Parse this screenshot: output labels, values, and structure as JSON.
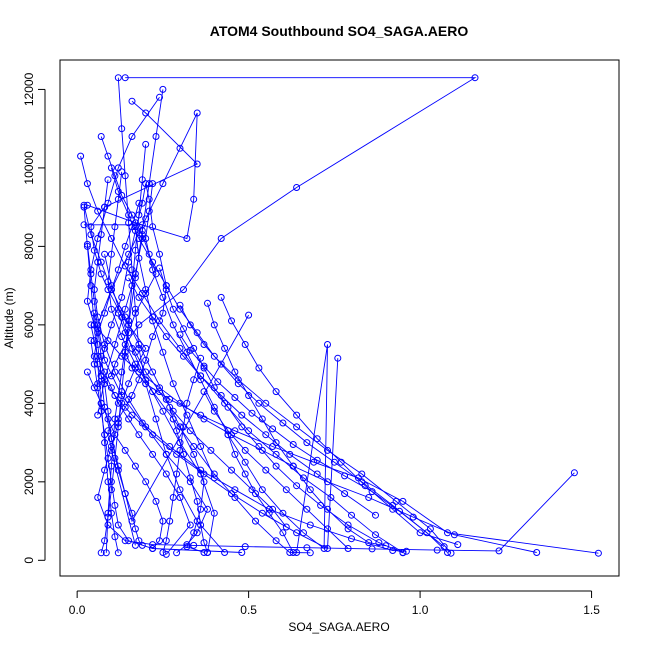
{
  "chart_data": {
    "type": "line",
    "title": "ATOM4 Southbound SO4_SAGA.AERO",
    "xlabel": "SO4_SAGA.AERO",
    "ylabel": "Altitude (m)",
    "xlim": [
      -0.05,
      1.58
    ],
    "ylim": [
      -400,
      12750
    ],
    "x_ticks": [
      0.0,
      0.5,
      1.0,
      1.5
    ],
    "x_tick_labels": [
      "0.0",
      "0.5",
      "1.0",
      "1.5"
    ],
    "y_ticks": [
      0,
      2000,
      4000,
      6000,
      8000,
      10000,
      12000
    ],
    "y_tick_labels": [
      "0",
      "2000",
      "4000",
      "6000",
      "8000",
      "10000",
      "12000"
    ],
    "series_color": "#0000ff",
    "marker": "open-circle",
    "grid": false,
    "legend": "none",
    "series": [
      {
        "x": [
          0.14,
          1.16,
          0.64,
          0.42,
          0.31,
          0.18,
          0.14,
          0.11,
          0.1,
          0.06,
          0.08,
          0.1,
          0.13,
          0.15,
          0.17,
          0.19,
          0.2,
          0.21,
          0.22,
          0.24,
          0.26,
          0.25,
          0.22,
          0.2,
          0.18,
          0.16,
          0.14,
          0.12,
          0.09,
          0.1,
          0.17
        ],
        "y": [
          12300,
          12300,
          9500,
          8200,
          6900,
          6000,
          5500,
          5000,
          4700,
          4500,
          5400,
          6000,
          6700,
          7600,
          8400,
          9100,
          9600,
          9200,
          8500,
          7800,
          7000,
          6300,
          5700,
          5100,
          4600,
          4200,
          3900,
          3600,
          3300,
          2800,
          380
        ]
      },
      {
        "x": [
          0.16,
          0.2,
          0.35,
          0.08,
          0.04,
          0.05,
          0.07,
          0.09,
          0.12,
          0.15,
          0.2,
          0.17,
          0.15,
          0.13,
          0.12,
          0.1,
          0.08,
          0.06,
          0.09,
          0.14,
          0.22,
          0.34,
          0.49,
          0.67,
          0.86,
          1.05,
          1.23,
          1.45
        ],
        "y": [
          11700,
          11400,
          10100,
          9000,
          8500,
          7900,
          7300,
          6900,
          6400,
          6000,
          5400,
          4900,
          4500,
          4000,
          3500,
          2900,
          2300,
          1600,
          900,
          500,
          400,
          380,
          350,
          320,
          290,
          260,
          240,
          2230
        ]
      },
      {
        "x": [
          0.24,
          0.16,
          0.12,
          0.09,
          0.06,
          0.04,
          0.03,
          0.05,
          0.09,
          0.13,
          0.18,
          0.24,
          0.3,
          0.37,
          0.45,
          0.54,
          0.63,
          0.73,
          0.85,
          0.98,
          1.1,
          1.34
        ],
        "y": [
          11800,
          10800,
          10000,
          9100,
          8200,
          7400,
          6600,
          6000,
          5600,
          5200,
          4800,
          4400,
          4000,
          3600,
          3200,
          2800,
          2400,
          2000,
          1600,
          1100,
          650,
          200
        ]
      },
      {
        "x": [
          0.07,
          0.09,
          0.11,
          0.13,
          0.16,
          0.19,
          0.21,
          0.23,
          0.2,
          0.17,
          0.15,
          0.14,
          0.16,
          0.2,
          0.27,
          0.36,
          0.46,
          0.57,
          0.69,
          0.82,
          0.95,
          1.08,
          1.52
        ],
        "y": [
          10800,
          10300,
          9800,
          9300,
          8800,
          8300,
          7800,
          7300,
          6800,
          6300,
          5800,
          5300,
          4900,
          4500,
          4100,
          3700,
          3300,
          2900,
          2500,
          2100,
          1500,
          700,
          180
        ]
      },
      {
        "x": [
          0.01,
          0.03,
          0.06,
          0.1,
          0.14,
          0.19,
          0.24,
          0.3,
          0.36,
          0.43,
          0.5,
          0.58,
          0.66,
          0.74,
          0.8,
          0.87,
          0.95
        ],
        "y": [
          10300,
          9600,
          8900,
          8200,
          7500,
          6800,
          6100,
          5400,
          4700,
          4000,
          3300,
          2700,
          2100,
          1600,
          1150,
          650,
          200
        ]
      },
      {
        "x": [
          0.1,
          0.12,
          0.15,
          0.18,
          0.22,
          0.26,
          0.3,
          0.35,
          0.4,
          0.47,
          0.55,
          0.64,
          0.73,
          0.83,
          0.93,
          1.03,
          1.09
        ],
        "y": [
          10000,
          9400,
          8800,
          8200,
          7600,
          7000,
          6400,
          5800,
          5200,
          4600,
          4000,
          3400,
          2800,
          2200,
          1500,
          800,
          180
        ]
      },
      {
        "x": [
          0.18,
          0.16,
          0.14,
          0.12,
          0.1,
          0.08,
          0.06,
          0.05,
          0.07,
          0.11,
          0.16,
          0.22,
          0.29,
          0.37,
          0.45,
          0.54,
          0.64,
          0.73,
          0.76
        ],
        "y": [
          9100,
          8500,
          8000,
          7400,
          6900,
          6300,
          5800,
          5200,
          4700,
          4200,
          3700,
          3200,
          2700,
          2200,
          1700,
          1200,
          700,
          300,
          5150
        ]
      },
      {
        "x": [
          0.03,
          0.17,
          0.32,
          0.34,
          0.35,
          0.3,
          0.25,
          0.2,
          0.15,
          0.1,
          0.06,
          0.08,
          0.13,
          0.19,
          0.27,
          0.36,
          0.46,
          0.56,
          0.68,
          0.8,
          0.92,
          0.96
        ],
        "y": [
          9050,
          8600,
          8200,
          9200,
          11400,
          10500,
          9600,
          8700,
          7800,
          6900,
          6000,
          5100,
          4200,
          3500,
          2900,
          2300,
          1800,
          1300,
          900,
          550,
          250,
          230
        ]
      },
      {
        "x": [
          0.22,
          0.21,
          0.2,
          0.22,
          0.25,
          0.28,
          0.32,
          0.36,
          0.4,
          0.44,
          0.49,
          0.54,
          0.6,
          0.66,
          0.72,
          0.73,
          0.64
        ],
        "y": [
          9600,
          8900,
          8200,
          7400,
          6700,
          6000,
          5300,
          4600,
          3900,
          3200,
          2500,
          1800,
          1200,
          700,
          300,
          5500,
          200
        ]
      },
      {
        "x": [
          0.13,
          0.12,
          0.11,
          0.1,
          0.09,
          0.1,
          0.13,
          0.17,
          0.22,
          0.28,
          0.34,
          0.4,
          0.46,
          0.52,
          0.58,
          0.62,
          0.68
        ],
        "y": [
          9900,
          9200,
          8500,
          7800,
          7100,
          6400,
          5700,
          5000,
          4300,
          3600,
          2900,
          2200,
          1600,
          1000,
          500,
          200,
          190
        ]
      },
      {
        "x": [
          0.09,
          0.08,
          0.07,
          0.06,
          0.05,
          0.06,
          0.08,
          0.11,
          0.15,
          0.2,
          0.26,
          0.33,
          0.38,
          0.35,
          0.32,
          0.29
        ],
        "y": [
          9700,
          9000,
          8300,
          7600,
          6900,
          6200,
          5500,
          4800,
          4100,
          3400,
          2700,
          2000,
          1300,
          700,
          400,
          190
        ]
      },
      {
        "x": [
          0.02,
          0.04,
          0.07,
          0.1,
          0.14,
          0.18,
          0.22,
          0.26,
          0.3,
          0.34,
          0.37,
          0.36,
          0.34,
          0.32,
          0.37
        ],
        "y": [
          9050,
          8300,
          7600,
          6900,
          6200,
          5500,
          4800,
          4100,
          3400,
          2700,
          2000,
          1300,
          700,
          350,
          200
        ]
      },
      {
        "x": [
          0.2,
          0.19,
          0.18,
          0.17,
          0.16,
          0.15,
          0.14,
          0.13,
          0.12,
          0.11,
          0.1,
          0.09,
          0.08,
          0.07
        ],
        "y": [
          10600,
          9700,
          8800,
          7900,
          7000,
          6100,
          5200,
          4300,
          3400,
          2600,
          1800,
          1100,
          500,
          190
        ]
      },
      {
        "x": [
          0.25,
          0.23,
          0.21,
          0.19,
          0.17,
          0.15,
          0.13,
          0.11,
          0.1,
          0.09,
          0.085
        ],
        "y": [
          12000,
          10800,
          9600,
          8400,
          7200,
          6000,
          4800,
          3600,
          2400,
          1200,
          190
        ]
      },
      {
        "x": [
          0.12,
          0.13,
          0.14,
          0.15,
          0.16,
          0.17,
          0.18,
          0.2,
          0.23,
          0.26,
          0.3,
          0.35,
          0.43
        ],
        "y": [
          12300,
          11000,
          9800,
          8600,
          7400,
          6400,
          5400,
          4500,
          3600,
          2700,
          1800,
          1000,
          200
        ]
      },
      {
        "x": [
          0.04,
          0.05,
          0.06,
          0.08,
          0.1,
          0.12,
          0.15,
          0.18,
          0.22,
          0.26,
          0.3,
          0.33,
          0.26
        ],
        "y": [
          6000,
          5600,
          5200,
          4800,
          4400,
          4000,
          3600,
          3200,
          2700,
          2200,
          1600,
          900,
          150
        ]
      },
      {
        "x": [
          0.03,
          0.05,
          0.07,
          0.09,
          0.11,
          0.14,
          0.17,
          0.2,
          0.23,
          0.25,
          0.24,
          0.22
        ],
        "y": [
          4800,
          4400,
          4000,
          3600,
          3200,
          2800,
          2400,
          2000,
          1500,
          1000,
          500,
          300
        ]
      },
      {
        "x": [
          0.05,
          0.06,
          0.07,
          0.08,
          0.1,
          0.12,
          0.14,
          0.16,
          0.17,
          0.18,
          0.19
        ],
        "y": [
          6300,
          5500,
          4700,
          3900,
          3100,
          2300,
          1700,
          1200,
          800,
          500,
          380
        ]
      },
      {
        "x": [
          0.03,
          0.04,
          0.05,
          0.06,
          0.07,
          0.08,
          0.09,
          0.1,
          0.12,
          0.14,
          0.16,
          0.5
        ],
        "y": [
          8050,
          7300,
          6600,
          5900,
          5200,
          4500,
          3800,
          3100,
          2400,
          1700,
          1000,
          6250
        ]
      },
      {
        "x": [
          0.04,
          0.05,
          0.06,
          0.07,
          0.08,
          0.09,
          0.1,
          0.11,
          0.12,
          0.15,
          0.22,
          0.48
        ],
        "y": [
          5600,
          5000,
          4400,
          3800,
          3200,
          2600,
          2000,
          1400,
          900,
          500,
          300,
          200
        ]
      },
      {
        "x": [
          0.12,
          0.14,
          0.17,
          0.2,
          0.24,
          0.28,
          0.33,
          0.39,
          0.45,
          0.51,
          0.57,
          0.61
        ],
        "y": [
          6300,
          5800,
          5300,
          4800,
          4300,
          3800,
          3300,
          2800,
          2300,
          1800,
          1300,
          850
        ]
      },
      {
        "x": [
          0.15,
          0.18,
          0.22,
          0.26,
          0.31,
          0.36,
          0.42,
          0.48,
          0.55,
          0.62,
          0.7,
          0.78,
          0.87
        ],
        "y": [
          7200,
          6700,
          6200,
          5700,
          5200,
          4700,
          4200,
          3700,
          3200,
          2700,
          2200,
          1700,
          1150
        ]
      },
      {
        "x": [
          0.3,
          0.33,
          0.37,
          0.42,
          0.47,
          0.53,
          0.6,
          0.67,
          0.75,
          0.83,
          0.92,
          1.07
        ],
        "y": [
          6500,
          6000,
          5500,
          5000,
          4500,
          4000,
          3500,
          3000,
          2500,
          2000,
          1400,
          350
        ]
      },
      {
        "x": [
          0.42,
          0.45,
          0.49,
          0.53,
          0.58,
          0.64,
          0.7,
          0.77,
          0.84,
          0.92,
          1.0,
          1.11
        ],
        "y": [
          6700,
          6100,
          5500,
          4900,
          4300,
          3700,
          3100,
          2500,
          1900,
          1300,
          700,
          400
        ]
      },
      {
        "x": [
          0.38,
          0.4,
          0.43,
          0.46,
          0.5,
          0.54,
          0.58,
          0.63,
          0.68,
          0.73,
          0.79,
          0.85,
          0.9
        ],
        "y": [
          6550,
          6000,
          5400,
          4800,
          4200,
          3600,
          3000,
          2400,
          1800,
          1300,
          800,
          450,
          370
        ]
      },
      {
        "x": [
          0.02,
          0.03,
          0.04,
          0.05,
          0.06,
          0.07,
          0.08,
          0.09,
          0.1,
          0.11,
          0.12
        ],
        "y": [
          9000,
          8000,
          7000,
          6000,
          5000,
          4000,
          3000,
          2000,
          1200,
          600,
          190
        ]
      },
      {
        "x": [
          0.08,
          0.1,
          0.13,
          0.16,
          0.2,
          0.25,
          0.3,
          0.36,
          0.4,
          0.38
        ],
        "y": [
          7800,
          7000,
          6200,
          5400,
          4600,
          3800,
          3000,
          2200,
          1200,
          200
        ]
      },
      {
        "x": [
          0.24,
          0.26,
          0.28,
          0.31,
          0.34,
          0.37,
          0.4,
          0.44,
          0.48,
          0.53,
          0.58,
          0.64,
          0.71,
          0.79,
          0.88,
          0.95
        ],
        "y": [
          7450,
          6900,
          6400,
          5900,
          5400,
          4900,
          4400,
          3900,
          3400,
          2900,
          2400,
          1900,
          1400,
          900,
          450,
          190
        ]
      },
      {
        "x": [
          0.36,
          0.34,
          0.32,
          0.31,
          0.3,
          0.29,
          0.28,
          0.27,
          0.26,
          0.25
        ],
        "y": [
          5150,
          4600,
          4000,
          3400,
          2800,
          2200,
          1600,
          1000,
          500,
          200
        ]
      },
      {
        "x": [
          0.27,
          0.29,
          0.31,
          0.33,
          0.35,
          0.36,
          0.37,
          0.38
        ],
        "y": [
          3900,
          3300,
          2700,
          2100,
          1500,
          900,
          450,
          200
        ]
      },
      {
        "x": [
          0.44,
          0.46,
          0.49,
          0.52,
          0.56,
          0.6,
          0.63
        ],
        "y": [
          3200,
          2700,
          2200,
          1700,
          1200,
          700,
          200
        ]
      },
      {
        "x": [
          0.17,
          0.18,
          0.2,
          0.22,
          0.25,
          0.28,
          0.32,
          0.36,
          0.4
        ],
        "y": [
          8500,
          7700,
          6900,
          6100,
          5300,
          4500,
          3700,
          2900,
          2100
        ]
      },
      {
        "x": [
          0.02,
          0.19,
          0.19,
          0.17,
          0.14,
          0.11,
          0.08,
          0.06
        ],
        "y": [
          8550,
          8550,
          8200,
          7300,
          6400,
          5500,
          4600,
          3700
        ]
      },
      {
        "x": [
          0.37,
          0.4,
          0.44,
          0.49,
          0.55,
          0.61,
          0.67,
          0.73,
          0.79
        ],
        "y": [
          4300,
          3800,
          3300,
          2800,
          2300,
          1800,
          1300,
          800,
          300
        ]
      },
      {
        "x": [
          0.3,
          0.33,
          0.37,
          0.41,
          0.46,
          0.51,
          0.57,
          0.63,
          0.7,
          0.78,
          0.86,
          0.94,
          1.02,
          1.08
        ],
        "y": [
          5750,
          5350,
          4950,
          4550,
          4150,
          3750,
          3350,
          2950,
          2550,
          2150,
          1750,
          1250,
          700,
          200
        ]
      }
    ]
  }
}
